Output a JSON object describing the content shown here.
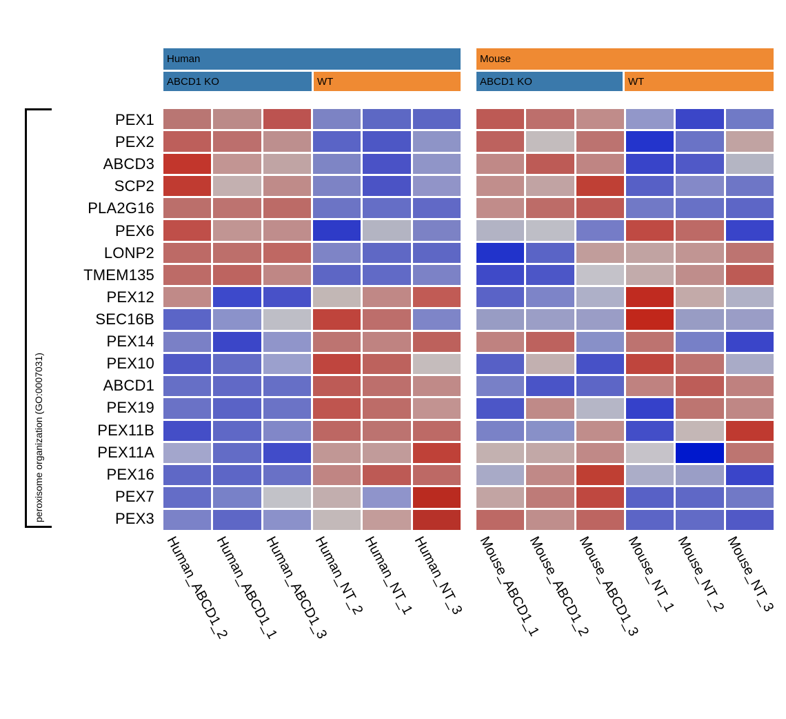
{
  "header": {
    "human": {
      "species_label": "Human",
      "species_color": "#3a79ab",
      "groups": [
        {
          "label": "ABCD1 KO",
          "color": "#3a79ab"
        },
        {
          "label": "WT",
          "color": "#ef8a33"
        }
      ]
    },
    "mouse": {
      "species_label": "Mouse",
      "species_color": "#ef8a33",
      "groups": [
        {
          "label": "ABCD1 KO",
          "color": "#3a79ab"
        },
        {
          "label": "WT",
          "color": "#ef8a33"
        }
      ]
    }
  },
  "row_group_label": "peroxisome organization (GO:0007031)",
  "chart_data": {
    "type": "heatmap",
    "title": "",
    "legend": "none visible",
    "colormap": "diverging blue (low) - gray (mid) - red (high)",
    "row_group": "peroxisome organization (GO:0007031)",
    "rows": [
      "PEX1",
      "PEX2",
      "ABCD3",
      "SCP2",
      "PLA2G16",
      "PEX6",
      "LONP2",
      "TMEM135",
      "PEX12",
      "SEC16B",
      "PEX14",
      "PEX10",
      "ABCD1",
      "PEX19",
      "PEX11B",
      "PEX11A",
      "PEX16",
      "PEX7",
      "PEX3"
    ],
    "columns": [
      "Human_ABCD1_2",
      "Human_ABCD1_1",
      "Human_ABCD1_3",
      "Human_NT_2",
      "Human_NT_1",
      "Human_NT_3",
      "Mouse_ABCD1_1",
      "Mouse_ABCD1_2",
      "Mouse_ABCD1_3",
      "Mouse_NT_1",
      "Mouse_NT_2",
      "Mouse_NT_3"
    ],
    "column_groups": [
      {
        "species": "Human",
        "condition": "ABCD1 KO",
        "columns": [
          "Human_ABCD1_2",
          "Human_ABCD1_1",
          "Human_ABCD1_3"
        ]
      },
      {
        "species": "Human",
        "condition": "WT",
        "columns": [
          "Human_NT_2",
          "Human_NT_1",
          "Human_NT_3"
        ]
      },
      {
        "species": "Mouse",
        "condition": "ABCD1 KO",
        "columns": [
          "Mouse_ABCD1_1",
          "Mouse_ABCD1_2",
          "Mouse_ABCD1_3"
        ]
      },
      {
        "species": "Mouse",
        "condition": "WT",
        "columns": [
          "Mouse_NT_1",
          "Mouse_NT_2",
          "Mouse_NT_3"
        ]
      }
    ],
    "cell_colors": [
      [
        "#b97673",
        "#bb8a88",
        "#bc5350",
        "#7c83c4",
        "#5d68c4",
        "#5c66c4",
        "#bd5a55",
        "#bd6f6c",
        "#c08c8a",
        "#9297c9",
        "#3b46c8",
        "#707ac6"
      ],
      [
        "#bd5f5b",
        "#bc6f6d",
        "#bd8f8e",
        "#5a64c6",
        "#4d57c5",
        "#8e94c7",
        "#bd625e",
        "#c3bcbd",
        "#bc7370",
        "#2334cc",
        "#6a73c6",
        "#c1a3a2"
      ],
      [
        "#c2362c",
        "#c29593",
        "#c0a4a4",
        "#7e85c5",
        "#4a52c6",
        "#9095c8",
        "#c08987",
        "#bd5b56",
        "#bf8583",
        "#3844c9",
        "#5059c7",
        "#b4b5c3"
      ],
      [
        "#c03b31",
        "#c3b0b0",
        "#bf8b89",
        "#7d83c5",
        "#4b53c5",
        "#9194c8",
        "#c18e8c",
        "#c1a3a3",
        "#bf4035",
        "#5760c6",
        "#8489c8",
        "#6e76c6"
      ],
      [
        "#bb6f6b",
        "#bd7370",
        "#bc6b67",
        "#6c74c5",
        "#656ec6",
        "#6169c6",
        "#c18c8a",
        "#bd6c68",
        "#bd5a55",
        "#7179c6",
        "#6871c6",
        "#5d66c6"
      ],
      [
        "#bf4f49",
        "#c19593",
        "#bf8d8c",
        "#2e3bc8",
        "#b3b4c2",
        "#7c82c5",
        "#b2b3c4",
        "#bebec6",
        "#757cc7",
        "#bf4a43",
        "#bd6a66",
        "#3944c9"
      ],
      [
        "#bd6a66",
        "#bd6f6b",
        "#bf6863",
        "#7e84c6",
        "#5f68c5",
        "#5e67c5",
        "#2133cb",
        "#5a64c6",
        "#c19d9b",
        "#c1a3a2",
        "#c19593",
        "#bd7471"
      ],
      [
        "#bd6b67",
        "#bd6460",
        "#bf8785",
        "#5d66c5",
        "#616ac6",
        "#7c82c6",
        "#3f4ac8",
        "#4c56c7",
        "#c4c2c9",
        "#c2abab",
        "#bf8d8b",
        "#bd5b55"
      ],
      [
        "#c08a88",
        "#3d49cb",
        "#4851c8",
        "#c2b7b5",
        "#c08886",
        "#c15b55",
        "#5a63c7",
        "#7d84c8",
        "#aeb0c8",
        "#c02b20",
        "#c3aaa9",
        "#b0b1c6"
      ],
      [
        "#5b65c7",
        "#8b92ca",
        "#bebec6",
        "#bf443c",
        "#bd6e6b",
        "#7e85c8",
        "#989cc4",
        "#9b9ec6",
        "#9a9dc6",
        "#c1271b",
        "#989cc4",
        "#9a9dc6"
      ],
      [
        "#7a80c6",
        "#3b46c8",
        "#9095ca",
        "#bd7471",
        "#bf8381",
        "#bd615c",
        "#bf8280",
        "#bd625e",
        "#8890c8",
        "#bd7370",
        "#7780c7",
        "#3a45c9"
      ],
      [
        "#5059c6",
        "#636cc6",
        "#9ba0cd",
        "#bf453e",
        "#bd625d",
        "#c5bcbc",
        "#5760c6",
        "#c2b0b0",
        "#4751c7",
        "#bf453d",
        "#bd7370",
        "#a9abc7"
      ],
      [
        "#666fc6",
        "#6169c6",
        "#666fc6",
        "#bd5b56",
        "#bd6f6c",
        "#c08a88",
        "#7880c7",
        "#4a54c7",
        "#5d66c6",
        "#bf8280",
        "#bd5d58",
        "#bf817f"
      ],
      [
        "#6a72c6",
        "#5a63c6",
        "#6b73c6",
        "#bf554f",
        "#bd6c68",
        "#c29391",
        "#4c56c7",
        "#bf8a88",
        "#b5b6c6",
        "#3541ca",
        "#bd7571",
        "#bf8785"
      ],
      [
        "#444ec7",
        "#5f68c6",
        "#8187c8",
        "#bd6763",
        "#bc7370",
        "#bd6a66",
        "#7a82c7",
        "#8890c8",
        "#c08d8b",
        "#434ec8",
        "#c4b7b6",
        "#bf3a30"
      ],
      [
        "#a3a6cc",
        "#636cc6",
        "#414cc9",
        "#c19795",
        "#c19b9a",
        "#bf4138",
        "#c3b1b0",
        "#c2a8a7",
        "#c08987",
        "#c6c3c9",
        "#0018cd",
        "#bd7571"
      ],
      [
        "#5f68c6",
        "#5d66c6",
        "#6971c6",
        "#c08583",
        "#bd5a55",
        "#bd6965",
        "#a8aac7",
        "#c08987",
        "#bf3f33",
        "#abadc8",
        "#9a9ec6",
        "#3a45c9"
      ],
      [
        "#646dc7",
        "#7881c8",
        "#c2c2c8",
        "#c2aeae",
        "#8f94cb",
        "#ba2b20",
        "#c2a4a3",
        "#be7b78",
        "#bf4840",
        "#5861c6",
        "#5f68c6",
        "#7179c6"
      ],
      [
        "#7b82c8",
        "#5e67c6",
        "#8b91ca",
        "#c3b9b9",
        "#c39c9a",
        "#b73229",
        "#bd6965",
        "#bf8e8c",
        "#bd6561",
        "#5c65c6",
        "#626bc6",
        "#5159c6"
      ]
    ]
  }
}
